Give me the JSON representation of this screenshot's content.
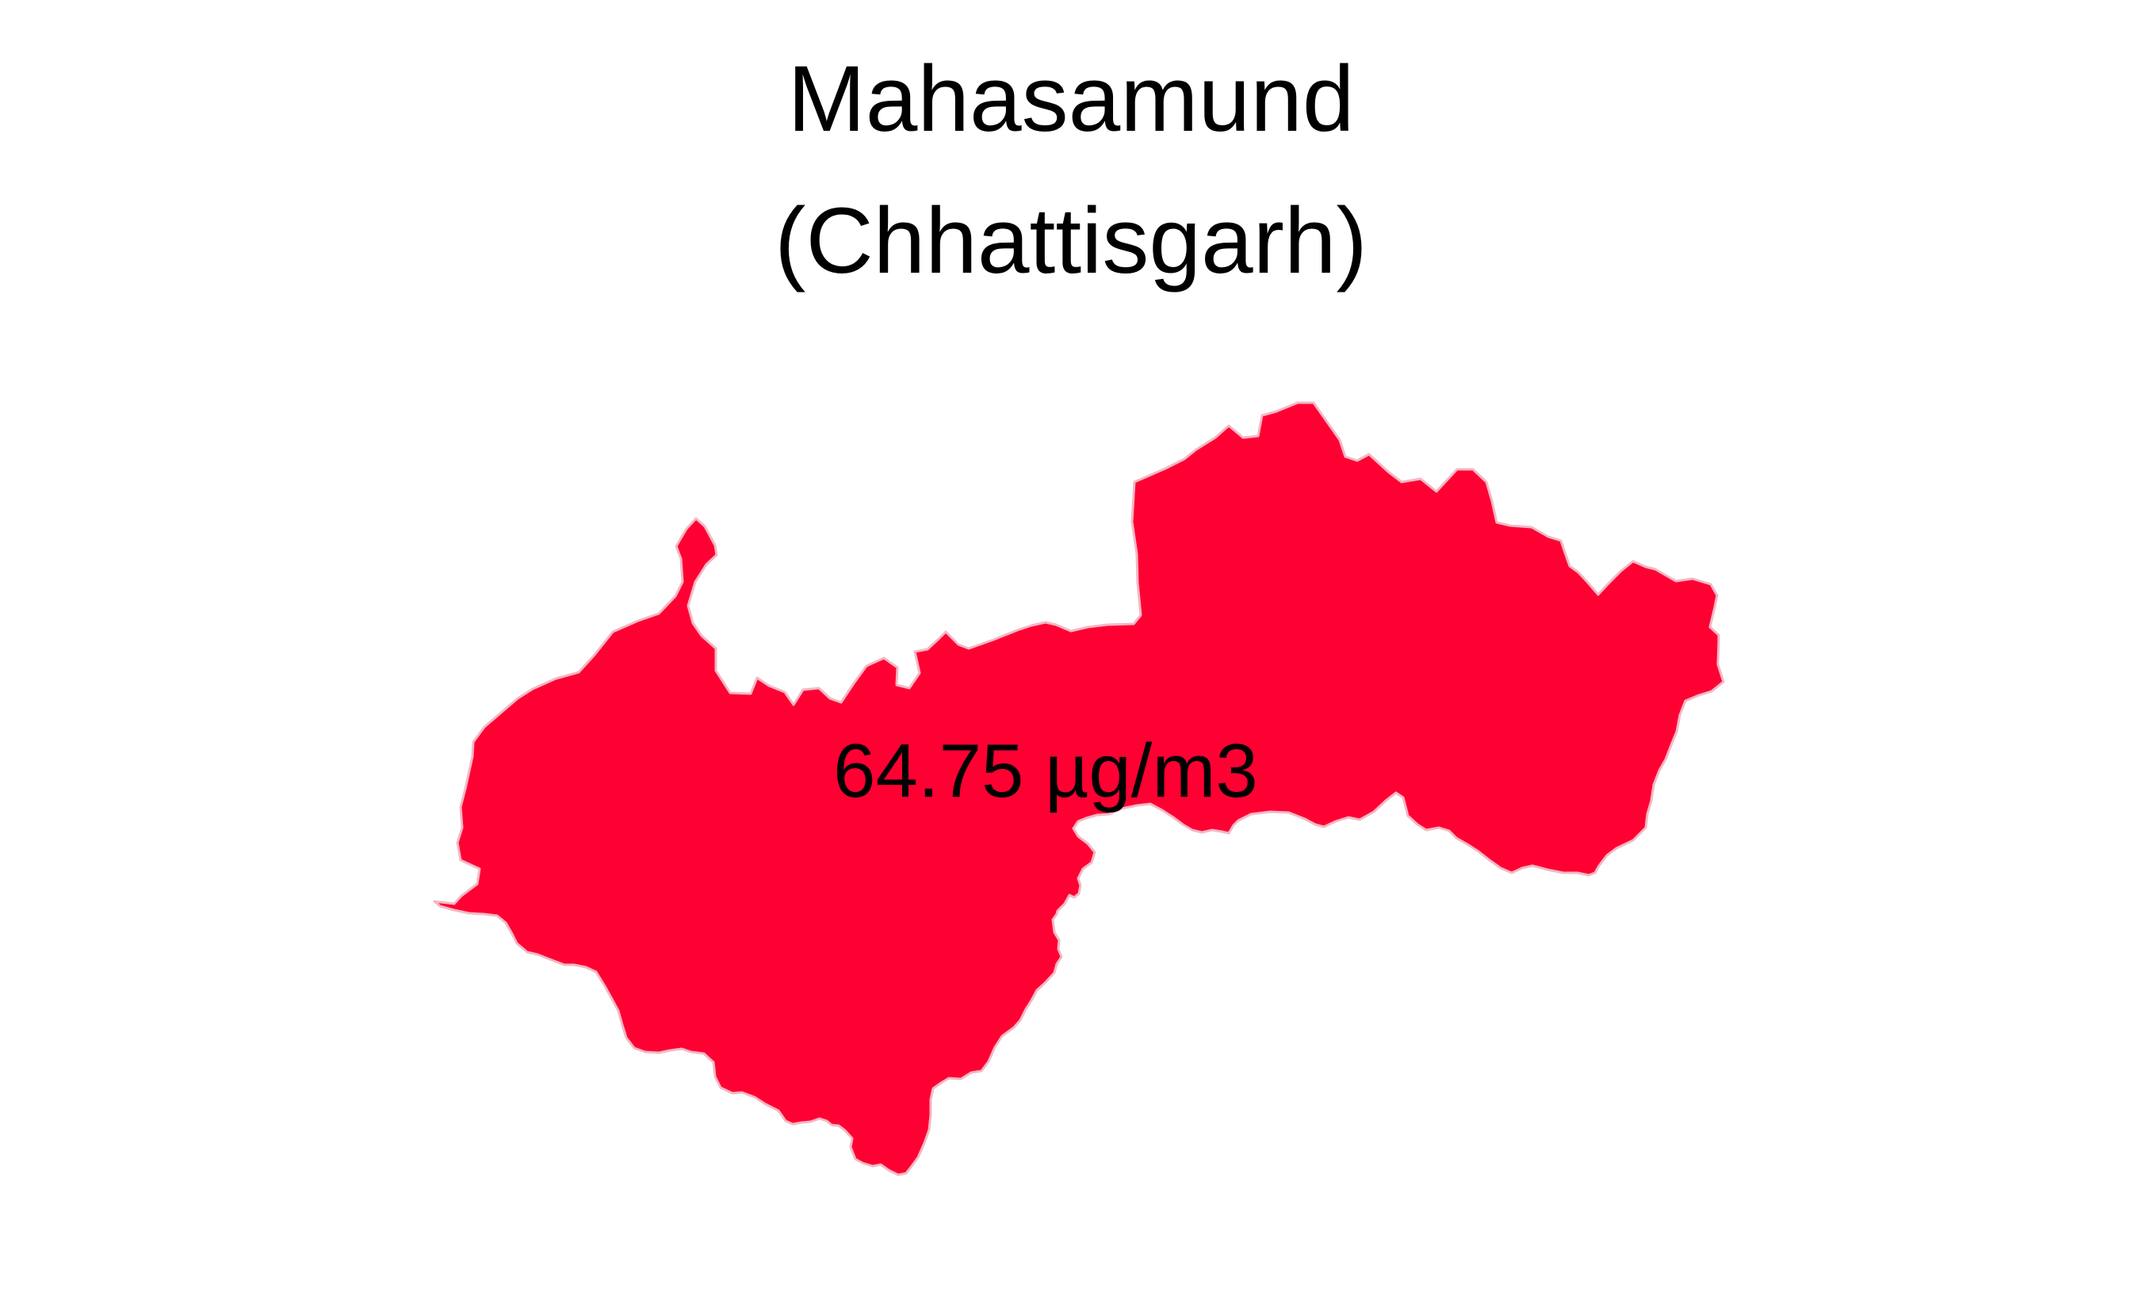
{
  "title": {
    "line1": "Mahasamund",
    "line2": "(Chhattisgarh)"
  },
  "region": {
    "name": "Mahasamund",
    "state": "Chhattisgarh",
    "value_label": "64.75 µg/m3",
    "value": 64.75,
    "unit": "µg/m3",
    "fill_color": "#FF0033",
    "border_color": "#F2B8C4"
  },
  "background_color": "#FFFFFF"
}
